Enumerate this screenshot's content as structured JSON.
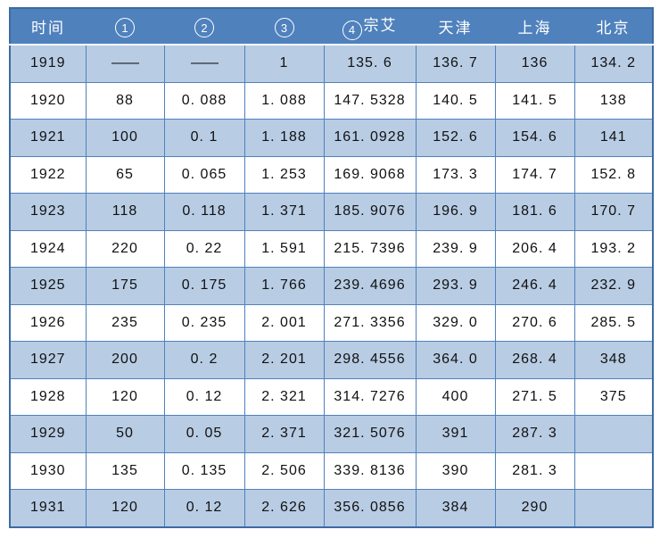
{
  "colors": {
    "header_bg": "#4f81bd",
    "header_text": "#ffffff",
    "band_row_bg": "#b8cce4",
    "plain_row_bg": "#ffffff",
    "gridline": "#4f81bd",
    "outer_border": "#3d6ba3",
    "header_separator": "#ffffff"
  },
  "table": {
    "headers": [
      {
        "label": "时间"
      },
      {
        "circled": "1"
      },
      {
        "circled": "2"
      },
      {
        "circled": "3"
      },
      {
        "circled": "4",
        "label": "宗艾"
      },
      {
        "label": "天津"
      },
      {
        "label": "上海"
      },
      {
        "label": "北京"
      }
    ],
    "rows": [
      [
        "1919",
        "——",
        "——",
        "1",
        "135. 6",
        "136. 7",
        "136",
        "134. 2"
      ],
      [
        "1920",
        "88",
        "0. 088",
        "1. 088",
        "147. 5328",
        "140. 5",
        "141. 5",
        "138"
      ],
      [
        "1921",
        "100",
        "0. 1",
        "1. 188",
        "161. 0928",
        "152. 6",
        "154. 6",
        "141"
      ],
      [
        "1922",
        "65",
        "0. 065",
        "1. 253",
        "169. 9068",
        "173. 3",
        "174. 7",
        "152. 8"
      ],
      [
        "1923",
        "118",
        "0. 118",
        "1. 371",
        "185. 9076",
        "196. 9",
        "181. 6",
        "170. 7"
      ],
      [
        "1924",
        "220",
        "0. 22",
        "1. 591",
        "215. 7396",
        "239. 9",
        "206. 4",
        "193. 2"
      ],
      [
        "1925",
        "175",
        "0. 175",
        "1. 766",
        "239. 4696",
        "293. 9",
        "246. 4",
        "232. 9"
      ],
      [
        "1926",
        "235",
        "0. 235",
        "2. 001",
        "271. 3356",
        "329. 0",
        "270. 6",
        "285. 5"
      ],
      [
        "1927",
        "200",
        "0. 2",
        "2. 201",
        "298. 4556",
        "364. 0",
        "268. 4",
        "348"
      ],
      [
        "1928",
        "120",
        "0. 12",
        "2. 321",
        "314. 7276",
        "400",
        "271. 5",
        "375"
      ],
      [
        "1929",
        "50",
        "0. 05",
        "2. 371",
        "321. 5076",
        "391",
        "287. 3",
        ""
      ],
      [
        "1930",
        "135",
        "0. 135",
        "2. 506",
        "339. 8136",
        "390",
        "281. 3",
        ""
      ],
      [
        "1931",
        "120",
        "0. 12",
        "2. 626",
        "356. 0856",
        "384",
        "290",
        ""
      ]
    ]
  }
}
